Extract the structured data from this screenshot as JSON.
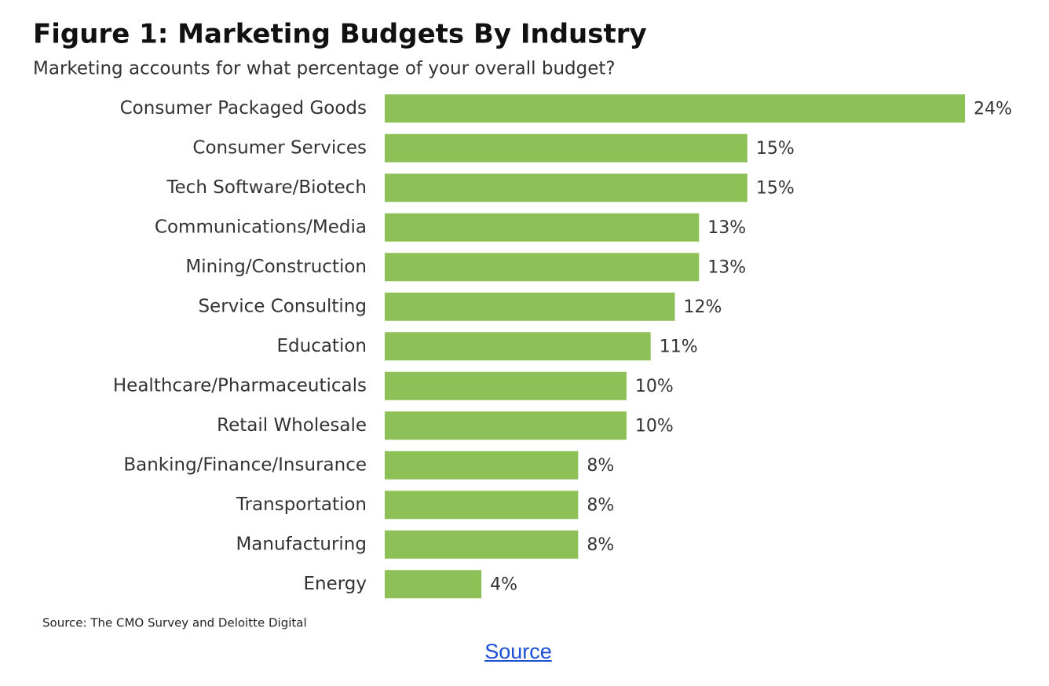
{
  "chart_data": {
    "type": "bar",
    "orientation": "horizontal",
    "title": "Figure 1: Marketing Budgets By Industry",
    "subtitle": "Marketing accounts for what percentage of your overall budget?",
    "categories": [
      "Consumer Packaged Goods",
      "Consumer Services",
      "Tech Software/Biotech",
      "Communications/Media",
      "Mining/Construction",
      "Service Consulting",
      "Education",
      "Healthcare/Pharmaceuticals",
      "Retail Wholesale",
      "Banking/Finance/Insurance",
      "Transportation",
      "Manufacturing",
      "Energy"
    ],
    "values": [
      24,
      15,
      15,
      13,
      13,
      12,
      11,
      10,
      10,
      8,
      8,
      8,
      4
    ],
    "value_labels": [
      "24%",
      "15%",
      "15%",
      "13%",
      "13%",
      "12%",
      "11%",
      "10%",
      "10%",
      "8%",
      "8%",
      "8%",
      "4%"
    ],
    "color": "#8dc056",
    "note": "Source: The CMO Survey and Deloitte Digital"
  },
  "link": {
    "text": "Source"
  }
}
